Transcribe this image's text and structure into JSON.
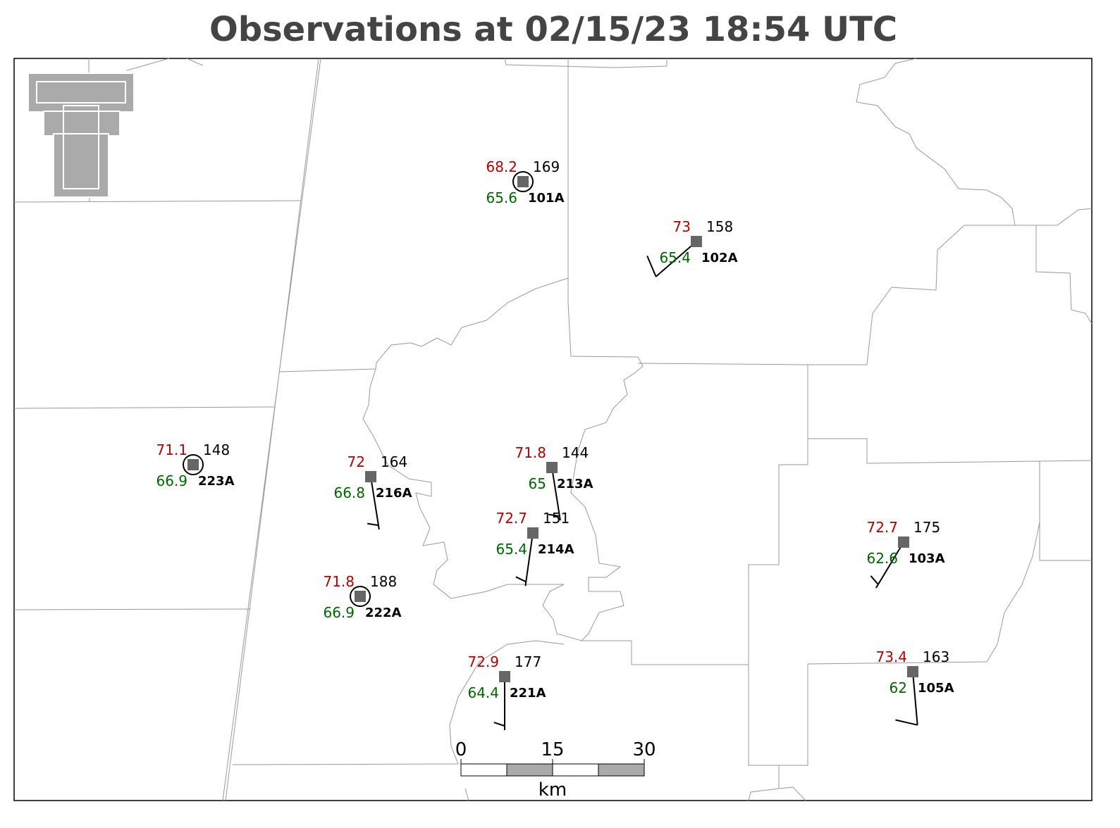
{
  "title": "Observations at 02/15/23 18:54 UTC",
  "stations": [
    {
      "id": "101A",
      "temperature": 68.2,
      "dewpoint": 65.6,
      "value": 169,
      "wind_speed": 0
    },
    {
      "id": "102A",
      "temperature": 73.0,
      "dewpoint": 65.4,
      "value": 158,
      "wind_direction": 229,
      "wind_speed": 10
    },
    {
      "id": "223A",
      "temperature": 71.1,
      "dewpoint": 66.9,
      "value": 148,
      "wind_speed": 0
    },
    {
      "id": "216A",
      "temperature": 72.0,
      "dewpoint": 66.8,
      "value": 164,
      "wind_direction": 171,
      "wind_speed": 5
    },
    {
      "id": "213A",
      "temperature": 71.8,
      "dewpoint": 65.0,
      "value": 144,
      "wind_direction": 171,
      "wind_speed": 5
    },
    {
      "id": "214A",
      "temperature": 72.7,
      "dewpoint": 65.4,
      "value": 151,
      "wind_direction": 188,
      "wind_speed": 5
    },
    {
      "id": "222A",
      "temperature": 71.8,
      "dewpoint": 66.9,
      "value": 188,
      "wind_speed": 0
    },
    {
      "id": "221A",
      "temperature": 72.9,
      "dewpoint": 64.4,
      "value": 177,
      "wind_direction": 180,
      "wind_speed": 5
    },
    {
      "id": "103A",
      "temperature": 72.7,
      "dewpoint": 62.6,
      "value": 175,
      "wind_direction": 211,
      "wind_speed": 5
    },
    {
      "id": "105A",
      "temperature": 73.4,
      "dewpoint": 62.0,
      "value": 163,
      "wind_direction": 175,
      "wind_speed": 10
    }
  ],
  "scale_bar": {
    "ticks": [
      0,
      15,
      30
    ],
    "unit": "km"
  }
}
